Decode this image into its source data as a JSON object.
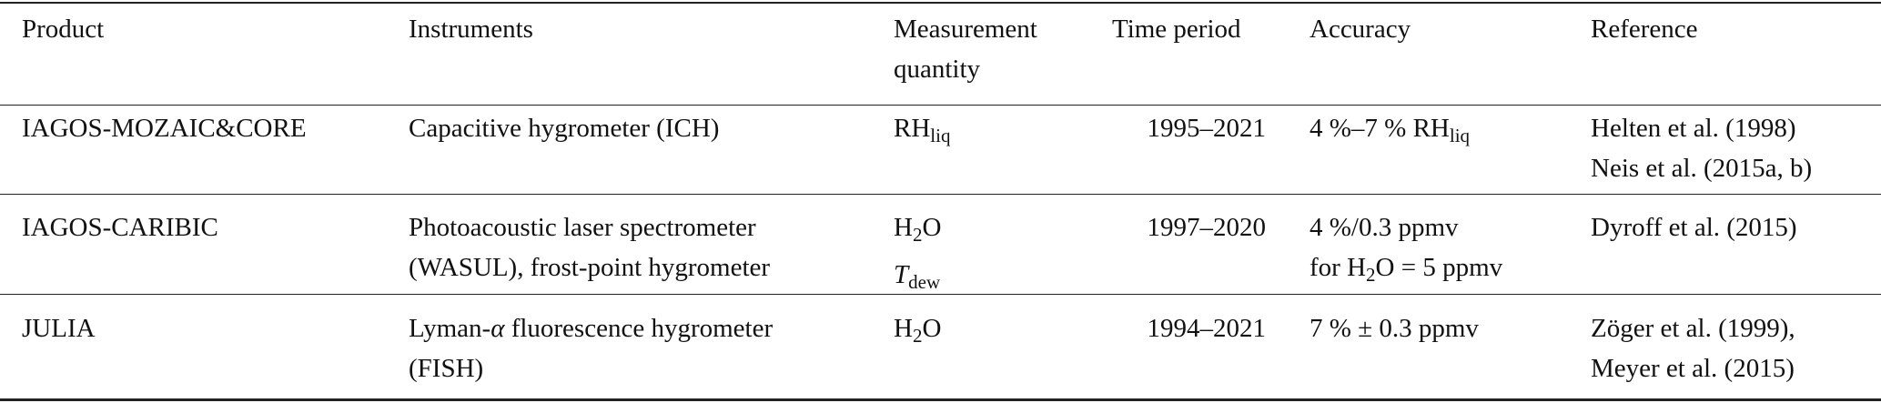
{
  "table": {
    "header": [
      [
        "Product"
      ],
      [
        "Instruments"
      ],
      [
        "Measurement",
        "quantity"
      ],
      [
        "Time period"
      ],
      [
        "Accuracy"
      ],
      [
        "Reference"
      ]
    ],
    "rows": [
      [
        [
          "IAGOS-MOZAIC&CORE"
        ],
        [
          "Capacitive hygrometer (ICH)"
        ],
        [
          [
            {
              "text": "RH"
            },
            {
              "sub": "liq"
            }
          ]
        ],
        [
          "1995–2021"
        ],
        [
          [
            {
              "text": "4 %–7 % RH"
            },
            {
              "sub": "liq"
            }
          ]
        ],
        [
          "Helten et al. (1998)",
          "Neis et al. (2015a, b)"
        ]
      ],
      [
        [
          "IAGOS-CARIBIC"
        ],
        [
          "Photoacoustic laser spectrometer",
          "(WASUL), frost-point hygrometer"
        ],
        [
          [
            {
              "text": "H"
            },
            {
              "sub": "2"
            },
            {
              "text": "O"
            }
          ],
          [
            {
              "italic": "T"
            },
            {
              "sub": "dew"
            }
          ]
        ],
        [
          "1997–2020"
        ],
        [
          "4 %/0.3 ppmv",
          [
            {
              "text": "for H"
            },
            {
              "sub": "2"
            },
            {
              "text": "O = 5 ppmv"
            }
          ]
        ],
        [
          "Dyroff et al. (2015)"
        ]
      ],
      [
        [
          "JULIA"
        ],
        [
          [
            {
              "text": "Lyman-"
            },
            {
              "italic": "α"
            },
            {
              "text": " fluorescence hygrometer"
            }
          ],
          "(FISH)"
        ],
        [
          [
            {
              "text": "H"
            },
            {
              "sub": "2"
            },
            {
              "text": "O"
            }
          ]
        ],
        [
          "1994–2021"
        ],
        [
          "7 % ± 0.3 ppmv"
        ],
        [
          "Zöger et al. (1999),",
          "Meyer et al. (2015)"
        ]
      ]
    ]
  }
}
